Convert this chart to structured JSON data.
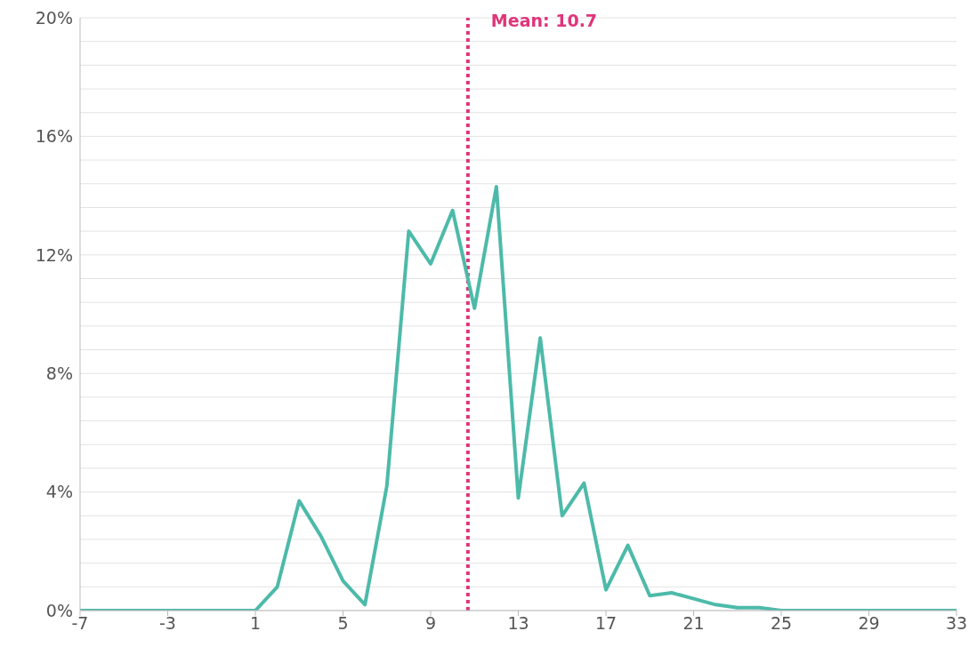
{
  "chart_data": {
    "type": "line",
    "x": [
      -7,
      -6,
      -5,
      -4,
      -3,
      -2,
      -1,
      0,
      1,
      2,
      3,
      4,
      5,
      6,
      7,
      8,
      9,
      10,
      11,
      12,
      13,
      14,
      15,
      16,
      17,
      18,
      19,
      20,
      21,
      22,
      23,
      24,
      25,
      26,
      27,
      28,
      29,
      30,
      31,
      32,
      33
    ],
    "series": [
      {
        "color": "#4dbaa9",
        "values": [
          0,
          0,
          0,
          0,
          0,
          0,
          0,
          0,
          0,
          0.8,
          3.7,
          2.5,
          1.0,
          0.2,
          4.2,
          12.8,
          11.7,
          13.5,
          10.2,
          14.3,
          3.8,
          9.2,
          3.2,
          4.3,
          0.7,
          2.2,
          0.5,
          0.6,
          0.4,
          0.2,
          0.1,
          0.1,
          0.0,
          0.0,
          0,
          0,
          0,
          0,
          0,
          0,
          0
        ]
      }
    ],
    "xlim": [
      -7,
      33
    ],
    "xticks": [
      -7,
      -3,
      1,
      5,
      9,
      13,
      17,
      21,
      25,
      29,
      33
    ],
    "ylim": [
      0,
      20
    ],
    "yticks": [
      {
        "value": 0,
        "label": "0%"
      },
      {
        "value": 0.8,
        "label": null
      },
      {
        "value": 1.6,
        "label": null
      },
      {
        "value": 2.4,
        "label": null
      },
      {
        "value": 3.2,
        "label": null
      },
      {
        "value": 4,
        "label": "4%"
      },
      {
        "value": 4.8,
        "label": null
      },
      {
        "value": 5.6,
        "label": null
      },
      {
        "value": 6.4,
        "label": null
      },
      {
        "value": 7.2,
        "label": null
      },
      {
        "value": 8,
        "label": "8%"
      },
      {
        "value": 8.8,
        "label": null
      },
      {
        "value": 9.6,
        "label": null
      },
      {
        "value": 10.4,
        "label": null
      },
      {
        "value": 11.2,
        "label": null
      },
      {
        "value": 12,
        "label": "12%"
      },
      {
        "value": 12.8,
        "label": null
      },
      {
        "value": 13.6,
        "label": null
      },
      {
        "value": 14.4,
        "label": null
      },
      {
        "value": 15.2,
        "label": null
      },
      {
        "value": 16,
        "label": "16%"
      },
      {
        "value": 16.8,
        "label": null
      },
      {
        "value": 17.6,
        "label": null
      },
      {
        "value": 18.4,
        "label": null
      },
      {
        "value": 19.2,
        "label": null
      },
      {
        "value": 20,
        "label": "20%"
      }
    ],
    "grid": "y",
    "marker": "none",
    "line_style": "solid",
    "ref_lines": [
      {
        "axis": "x",
        "value": 10.7,
        "label": "Mean: 10.7",
        "color": "#e0357a",
        "line_style": "dotted"
      }
    ]
  }
}
